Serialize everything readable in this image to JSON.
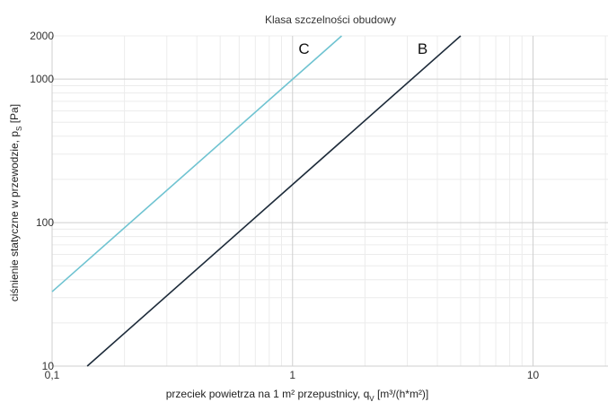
{
  "chart_data": {
    "type": "line",
    "title": "Klasa szczelności obudowy",
    "xlabel": {
      "main": "przeciek powietrza na 1 m² przepustnicy, q",
      "sub": "V",
      "unit": " [m³/(h*m²)]"
    },
    "ylabel": {
      "main": "ciśnienie statyczne w przewodzie, p",
      "sub": "S",
      "unit": " [Pa]"
    },
    "x_scale": "log",
    "y_scale": "log",
    "xlim": [
      0.1,
      20
    ],
    "ylim": [
      10,
      2000
    ],
    "x_ticks": [
      {
        "value": 0.1,
        "label": "0,1"
      },
      {
        "value": 1,
        "label": "1"
      },
      {
        "value": 10,
        "label": "10"
      }
    ],
    "y_ticks": [
      {
        "value": 10,
        "label": "10"
      },
      {
        "value": 100,
        "label": "100"
      },
      {
        "value": 1000,
        "label": "1000"
      },
      {
        "value": 2000,
        "label": "2000"
      }
    ],
    "grid": true,
    "series": [
      {
        "name": "C",
        "x": [
          0.1,
          1.6
        ],
        "y": [
          33,
          2000
        ],
        "color": "#6fc3d1"
      },
      {
        "name": "B",
        "x": [
          0.14,
          5.0
        ],
        "y": [
          10,
          2000
        ],
        "color": "#1d2b3a"
      }
    ]
  }
}
